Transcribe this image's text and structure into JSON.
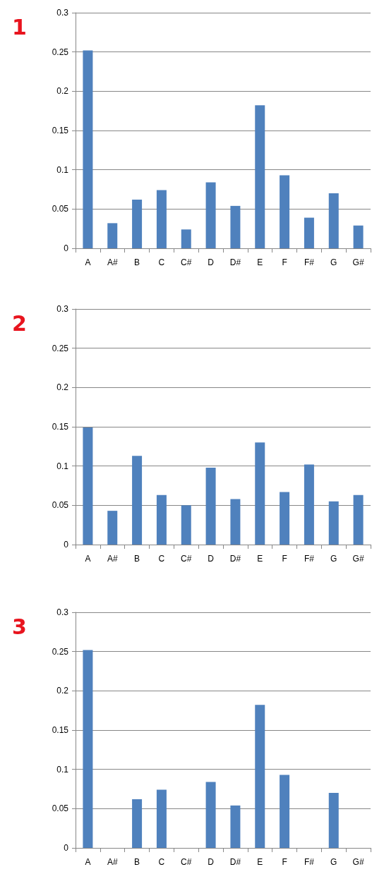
{
  "chart_data": [
    {
      "type": "bar",
      "title": "1",
      "categories": [
        "A",
        "A#",
        "B",
        "C",
        "C#",
        "D",
        "D#",
        "E",
        "F",
        "F#",
        "G",
        "G#"
      ],
      "series": [
        {
          "color": "#4f81bd",
          "values": [
            0.252,
            0.032,
            0.062,
            0.074,
            0.024,
            0.084,
            0.054,
            0.182,
            0.093,
            0.039,
            0.07,
            0.029
          ]
        }
      ],
      "ylim": [
        0,
        0.3
      ],
      "yticks": [
        0,
        0.05,
        0.1,
        0.15,
        0.2,
        0.25,
        0.3
      ],
      "grid": "y"
    },
    {
      "type": "bar",
      "title": "2",
      "categories": [
        "A",
        "A#",
        "B",
        "C",
        "C#",
        "D",
        "D#",
        "E",
        "F",
        "F#",
        "G",
        "G#"
      ],
      "series": [
        {
          "color": "#4f81bd",
          "values": [
            0.149,
            0.043,
            0.113,
            0.063,
            0.05,
            0.098,
            0.058,
            0.13,
            0.067,
            0.102,
            0.055,
            0.063
          ]
        }
      ],
      "ylim": [
        0,
        0.3
      ],
      "yticks": [
        0,
        0.05,
        0.1,
        0.15,
        0.2,
        0.25,
        0.3
      ],
      "grid": "y"
    },
    {
      "type": "bar",
      "title": "3",
      "categories": [
        "A",
        "A#",
        "B",
        "C",
        "C#",
        "D",
        "D#",
        "E",
        "F",
        "F#",
        "G",
        "G#"
      ],
      "series": [
        {
          "color": "#4f81bd",
          "values": [
            0.252,
            0,
            0.062,
            0.074,
            0,
            0.084,
            0.054,
            0.182,
            0.093,
            0,
            0.07,
            0
          ]
        }
      ],
      "ylim": [
        0,
        0.3
      ],
      "yticks": [
        0,
        0.05,
        0.1,
        0.15,
        0.2,
        0.25,
        0.3
      ],
      "grid": "y"
    }
  ]
}
